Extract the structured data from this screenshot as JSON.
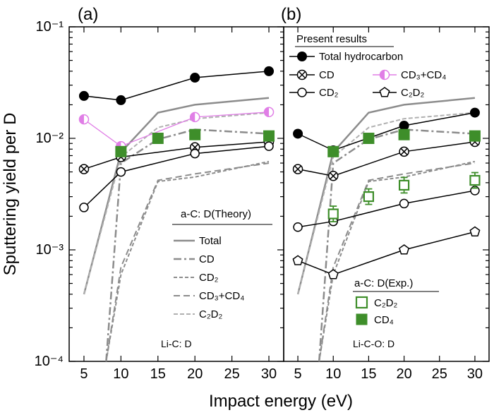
{
  "chart_data": {
    "type": "line",
    "ylabel": "Sputtering yield per D",
    "xlabel": "Impact energy (eV)",
    "yscale": "log",
    "ylim": [
      0.0001,
      0.1
    ],
    "xlim": [
      3,
      32
    ],
    "xticks": [
      5,
      10,
      15,
      20,
      25,
      30
    ],
    "ytick_labels": [
      "10⁻⁴",
      "10⁻³",
      "10⁻²",
      "10⁻¹"
    ],
    "colors": {
      "black": "#000000",
      "theory_gray": "#8c8c8c",
      "magenta": "#e07ee6",
      "green": "#3e8e2a"
    },
    "panels": [
      {
        "label": "(a)",
        "annotation": "Li-C: D",
        "legend_theory": {
          "title": "a-C: D(Theory)",
          "entries": [
            "Total",
            "CD",
            "CD₂",
            "CD₃+CD₄",
            "C₂D₂"
          ]
        },
        "series": [
          {
            "key": "total",
            "x": [
              5,
              10,
              20,
              30
            ],
            "y": [
              0.024,
              0.022,
              0.035,
              0.04
            ]
          },
          {
            "key": "cd",
            "x": [
              5,
              10,
              20,
              30
            ],
            "y": [
              0.0053,
              0.0068,
              0.0083,
              0.0093
            ]
          },
          {
            "key": "cd2",
            "x": [
              5,
              10,
              20,
              30
            ],
            "y": [
              0.0024,
              0.005,
              0.0073,
              0.0085
            ]
          },
          {
            "key": "cd3cd4",
            "x": [
              5,
              10,
              20,
              30
            ],
            "y": [
              0.0148,
              0.0085,
              0.0155,
              0.0172
            ]
          },
          {
            "key": "exp_cd4",
            "x": [
              10,
              15,
              20,
              30
            ],
            "y": [
              0.0076,
              0.01,
              0.0108,
              0.0105
            ]
          }
        ]
      },
      {
        "label": "(b)",
        "annotation": "Li-C-O: D",
        "legend_present": {
          "title": "Present results",
          "entries": [
            "Total hydrocarbon",
            "CD",
            "CD₃+CD₄",
            "CD₂",
            "C₂D₂"
          ]
        },
        "legend_exp": {
          "title": "a-C: D(Exp.)",
          "entries": [
            "C₂D₂",
            "CD₄"
          ]
        },
        "series": [
          {
            "key": "total",
            "x": [
              5,
              10,
              20,
              30
            ],
            "y": [
              0.011,
              0.0078,
              0.013,
              0.017
            ]
          },
          {
            "key": "cd",
            "x": [
              5,
              10,
              20,
              30
            ],
            "y": [
              0.0053,
              0.0046,
              0.0076,
              0.0093
            ]
          },
          {
            "key": "cd2",
            "x": [
              5,
              10,
              20,
              30
            ],
            "y": [
              0.0016,
              0.0018,
              0.0026,
              0.0034
            ]
          },
          {
            "key": "c2d2",
            "x": [
              5,
              10,
              20,
              30
            ],
            "y": [
              0.0008,
              0.0006,
              0.001,
              0.00145
            ]
          },
          {
            "key": "exp_c2d2",
            "x": [
              10,
              15,
              20,
              30
            ],
            "y": [
              0.0021,
              0.003,
              0.0038,
              0.0042
            ]
          },
          {
            "key": "exp_cd4",
            "x": [
              10,
              15,
              20,
              30
            ],
            "y": [
              0.0076,
              0.01,
              0.0108,
              0.0105
            ]
          }
        ]
      }
    ],
    "theory": [
      {
        "key": "total",
        "x": [
          5,
          10,
          15,
          20,
          30
        ],
        "y": [
          0.0004,
          0.0075,
          0.017,
          0.02,
          0.023
        ]
      },
      {
        "key": "cd",
        "x": [
          8,
          10,
          15,
          20,
          30
        ],
        "y": [
          0.0001,
          0.006,
          0.0098,
          0.012,
          0.011
        ]
      },
      {
        "key": "cd2",
        "x": [
          8,
          10,
          15,
          20,
          30
        ],
        "y": [
          0.0001,
          0.0006,
          0.0041,
          0.0045,
          0.0062
        ]
      },
      {
        "key": "cd3cd4",
        "x": [
          8,
          10,
          15,
          20,
          30
        ],
        "y": [
          0.0001,
          0.0007,
          0.0042,
          0.0048,
          0.006
        ]
      },
      {
        "key": "c2d2",
        "x": [
          5,
          10,
          15,
          20,
          30
        ],
        "y": [
          0.0004,
          0.0068,
          0.0125,
          0.015,
          0.017
        ]
      }
    ]
  }
}
